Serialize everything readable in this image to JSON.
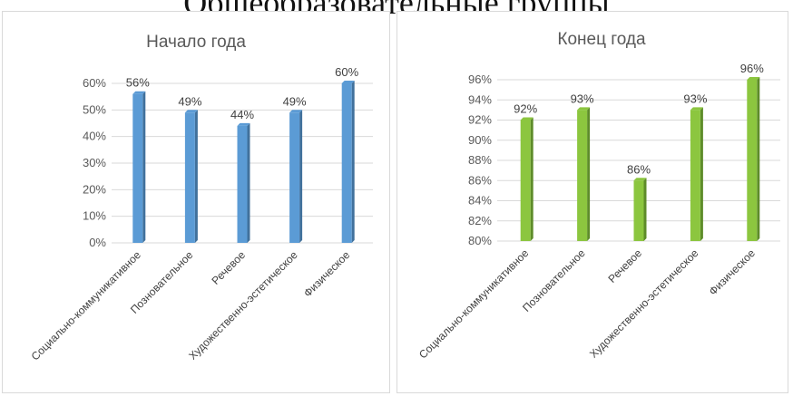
{
  "page": {
    "title": "Общеобразовательные группы"
  },
  "chart_data": [
    {
      "type": "bar",
      "title": "Начало года",
      "categories": [
        "Социально-коммуникативное",
        "Позновательное",
        "Речевое",
        "Художественно-эстетическое",
        "Физическое"
      ],
      "values": [
        56,
        49,
        44,
        49,
        60
      ],
      "value_labels": [
        "56%",
        "49%",
        "44%",
        "49%",
        "60%"
      ],
      "ylim": [
        0,
        60
      ],
      "yticks": [
        0,
        10,
        20,
        30,
        40,
        50,
        60
      ],
      "ytick_labels": [
        "0%",
        "10%",
        "20%",
        "30%",
        "40%",
        "50%",
        "60%"
      ],
      "grid": true,
      "bar_color": "#5B9BD5",
      "bar_side_color": "#41719C"
    },
    {
      "type": "bar",
      "title": "Конец года",
      "categories": [
        "Социально-коммуникативное",
        "Позновательное",
        "Речевое",
        "Художественно-эстетическое",
        "Физическое"
      ],
      "values": [
        92,
        93,
        86,
        93,
        96
      ],
      "value_labels": [
        "92%",
        "93%",
        "86%",
        "93%",
        "96%"
      ],
      "ylim": [
        80,
        96
      ],
      "yticks": [
        80,
        82,
        84,
        86,
        88,
        90,
        92,
        94,
        96
      ],
      "ytick_labels": [
        "80%",
        "82%",
        "84%",
        "86%",
        "88%",
        "90%",
        "92%",
        "94%",
        "96%"
      ],
      "grid": true,
      "bar_color": "#8CC63F",
      "bar_side_color": "#5E8C2A"
    }
  ]
}
